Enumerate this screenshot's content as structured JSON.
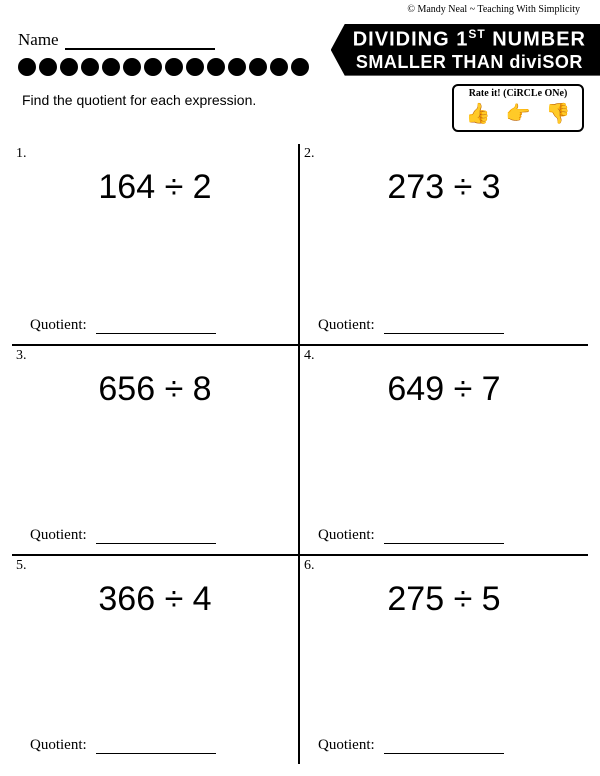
{
  "copyright": "© Mandy Neal ~ Teaching With Simplicity",
  "name_label": "Name",
  "title_line1_a": "DIVIDING 1",
  "title_line1_sup": "ST",
  "title_line1_b": " NUMBER",
  "title_line2": "SMALLER THAN diviSOR",
  "instruction": "Find the quotient for each expression.",
  "rate_title": "Rate it! (CiRCLe ONe)",
  "thumbs": {
    "up": "👍",
    "side": "👉",
    "down": "👎"
  },
  "quotient_label": "Quotient:",
  "dot_count": 14,
  "problems": [
    {
      "num": "1.",
      "expr": "164 ÷ 2"
    },
    {
      "num": "2.",
      "expr": "273 ÷ 3"
    },
    {
      "num": "3.",
      "expr": "656 ÷ 8"
    },
    {
      "num": "4.",
      "expr": "649 ÷ 7"
    },
    {
      "num": "5.",
      "expr": "366 ÷ 4"
    },
    {
      "num": "6.",
      "expr": "275 ÷ 5"
    }
  ]
}
